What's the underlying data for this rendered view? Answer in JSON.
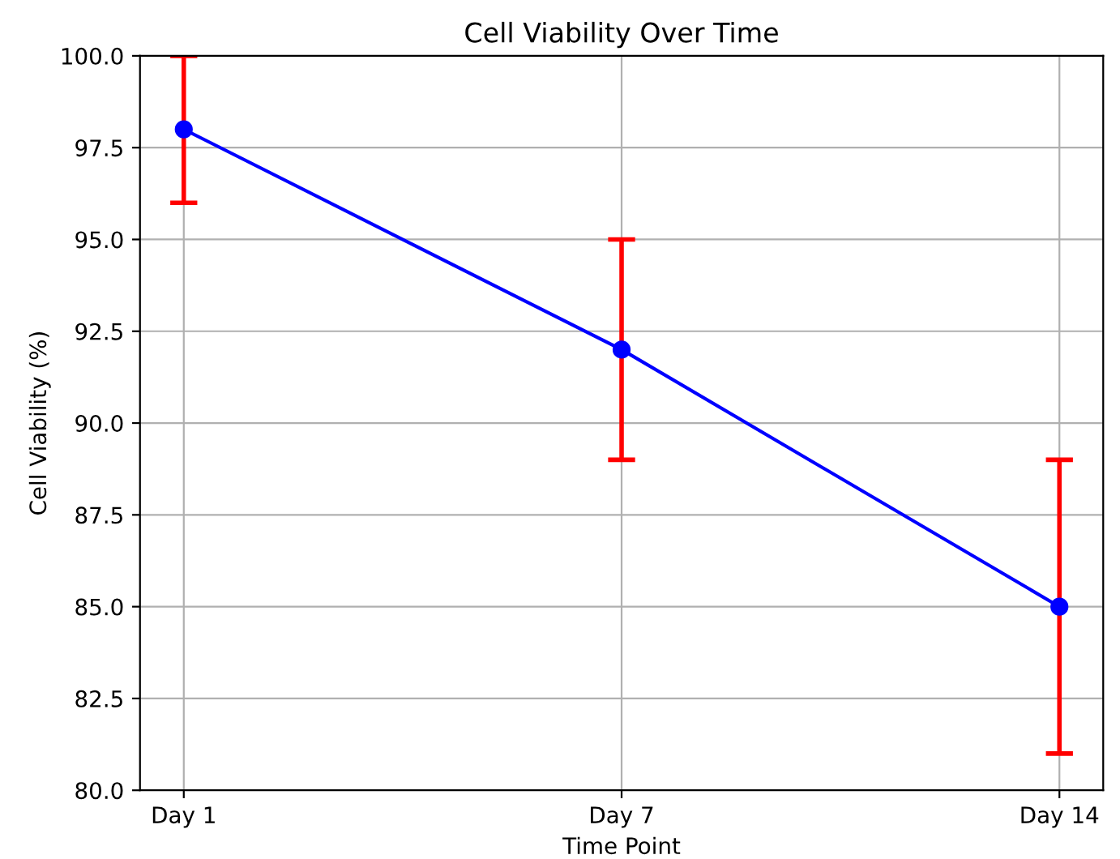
{
  "chart_data": {
    "type": "line",
    "title": "Cell Viability Over Time",
    "xlabel": "Time Point",
    "ylabel": "Cell Viability (%)",
    "categories": [
      "Day 1",
      "Day 7",
      "Day 14"
    ],
    "series": [
      {
        "color": "#0000ff",
        "values": [
          98,
          92,
          85
        ],
        "errors": [
          2,
          3,
          4
        ]
      }
    ],
    "ylim": [
      80,
      100
    ],
    "yticks": [
      {
        "value": 80,
        "label": "80.0"
      },
      82.5,
      {
        "value": 85,
        "label": "85.0"
      },
      87.5,
      {
        "value": 90,
        "label": "90.0"
      },
      92.5,
      {
        "value": 95,
        "label": "95.0"
      },
      97.5,
      {
        "value": 100,
        "label": "100.0"
      }
    ],
    "grid": true,
    "marker": "circle",
    "line_style": "solid"
  }
}
